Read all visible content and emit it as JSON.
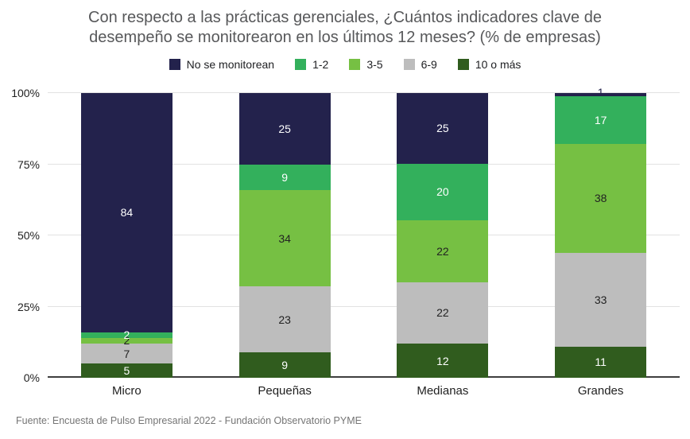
{
  "title": {
    "line1": "Con respecto a las prácticas gerenciales, ¿Cuántos indicadores clave de",
    "line2": "desempeño se monitorearon en los últimos 12 meses? (% de empresas)"
  },
  "source": "Fuente: Encuesta de Pulso Empresarial 2022 - Fundación Observatorio PYME",
  "chart_data": {
    "type": "bar",
    "variant": "stacked-percent",
    "title": "Con respecto a las prácticas gerenciales, ¿Cuántos indicadores clave de desempeño se monitorearon en los últimos 12 meses? (% de empresas)",
    "legend_position": "top",
    "grid": true,
    "ylim": [
      0,
      100
    ],
    "categories": [
      "Micro",
      "Pequeñas",
      "Medianas",
      "Grandes"
    ],
    "series": [
      {
        "name": "No se monitorean",
        "color": "#23224c",
        "label_color": "#ffffff",
        "values": [
          84,
          25,
          25,
          1
        ]
      },
      {
        "name": "1-2",
        "color": "#33b05c",
        "label_color": "#ffffff",
        "values": [
          2,
          9,
          20,
          17
        ]
      },
      {
        "name": "3-5",
        "color": "#76c043",
        "label_color": "#222222",
        "values": [
          2,
          34,
          22,
          38
        ]
      },
      {
        "name": "6-9",
        "color": "#bdbdbd",
        "label_color": "#222222",
        "values": [
          7,
          23,
          22,
          33
        ]
      },
      {
        "name": "10 o más",
        "color": "#305c1e",
        "label_color": "#ffffff",
        "values": [
          5,
          9,
          12,
          11
        ]
      }
    ],
    "stack_order_bottom_to_top": [
      "10 o más",
      "6-9",
      "3-5",
      "1-2",
      "No se monitorean"
    ],
    "y_ticks": [
      {
        "label": "0%",
        "value": 0
      },
      {
        "label": "25%",
        "value": 25
      },
      {
        "label": "50%",
        "value": 50
      },
      {
        "label": "75%",
        "value": 75
      },
      {
        "label": "100%",
        "value": 100
      }
    ]
  }
}
